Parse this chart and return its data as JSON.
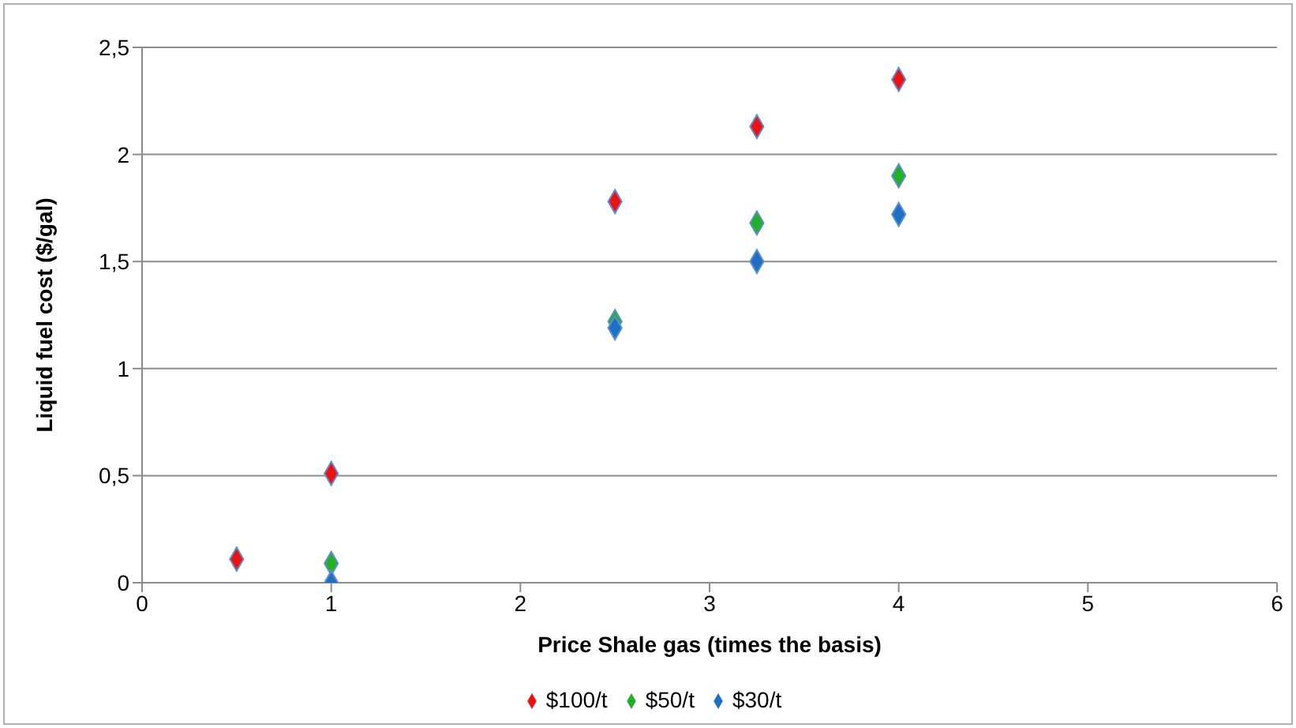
{
  "chart_data": {
    "type": "scatter",
    "xlabel": "Price Shale gas (times the basis)",
    "ylabel": "Liquid fuel cost ($/gal)",
    "x": [
      0.5,
      1,
      2.5,
      3.25,
      4
    ],
    "series": [
      {
        "name": "$30/t",
        "color": "#1f6fc5",
        "values": [
          null,
          0,
          1.19,
          1.5,
          1.72
        ]
      },
      {
        "name": "$50/t",
        "color": "#23b024",
        "values": [
          null,
          0.09,
          1.22,
          1.68,
          1.9
        ]
      },
      {
        "name": "$100/t",
        "color": "#ee1111",
        "values": [
          0.11,
          0.51,
          1.78,
          2.13,
          2.35
        ]
      }
    ],
    "xlim": [
      0,
      6
    ],
    "xticks": [
      0,
      1,
      2,
      3,
      4,
      5,
      6
    ],
    "ylim": [
      0,
      2.5
    ],
    "yticks": [
      0,
      {
        "value": 0.5,
        "label": "0,5"
      },
      1,
      {
        "value": 1.5,
        "label": "1,5"
      },
      2,
      {
        "value": 2.5,
        "label": "2,5"
      }
    ],
    "grid": "y",
    "legend": "bottom",
    "marker": "diamond"
  }
}
